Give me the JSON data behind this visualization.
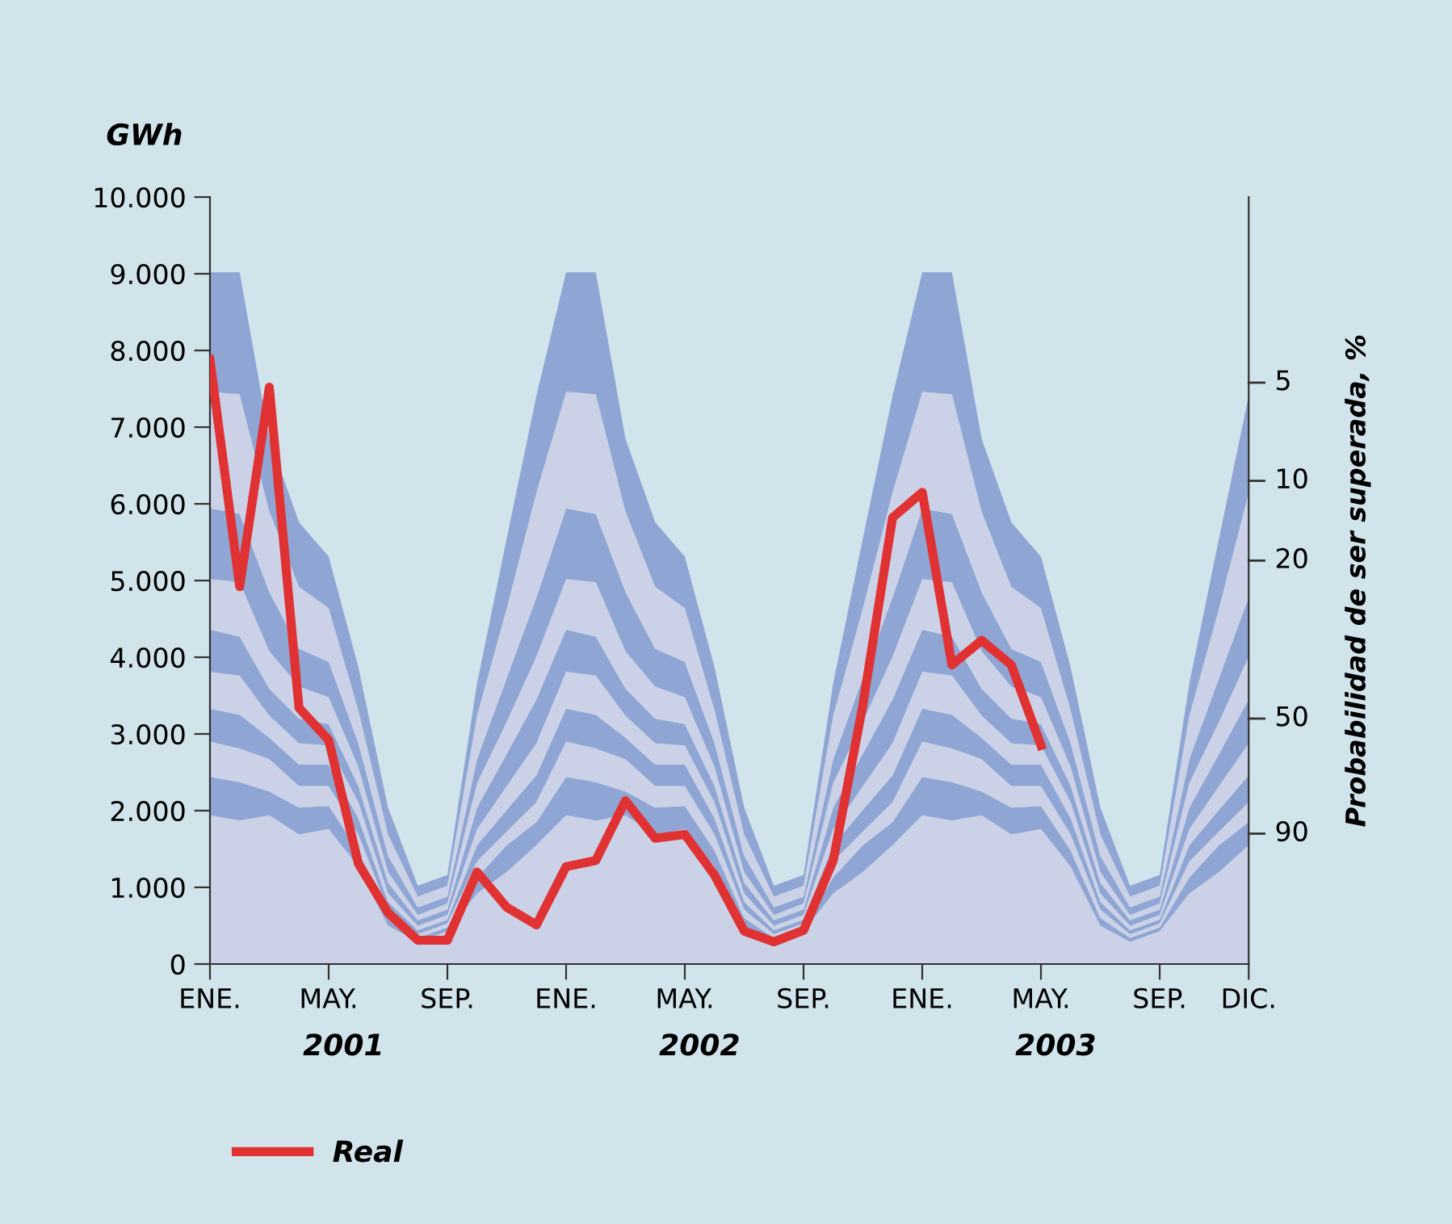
{
  "chart_data": {
    "type": "area",
    "stacked": true,
    "ylabel": "GWh",
    "y2label": "Probabilidad de ser superada, %",
    "categories": [
      "ENE.",
      null,
      null,
      null,
      "MAY.",
      null,
      null,
      null,
      "SEP.",
      null,
      null,
      null,
      "ENE.",
      null,
      null,
      null,
      "MAY.",
      null,
      null,
      null,
      "SEP.",
      null,
      null,
      null,
      "ENE.",
      null,
      null,
      null,
      "MAY.",
      null,
      null,
      null,
      "SEP.",
      null,
      null,
      "DIC."
    ],
    "ylim": [
      0,
      10000
    ],
    "yticks": [
      0,
      {
        "value": 1000,
        "label": "1.000"
      },
      {
        "value": 2000,
        "label": "2.000"
      },
      {
        "value": 3000,
        "label": "3.000"
      },
      {
        "value": 4000,
        "label": "4.000"
      },
      {
        "value": 5000,
        "label": "5.000"
      },
      {
        "value": 6000,
        "label": "6.000"
      },
      {
        "value": 7000,
        "label": "7.000"
      },
      {
        "value": 8000,
        "label": "8.000"
      },
      {
        "value": 9000,
        "label": "9.000"
      },
      {
        "value": 10000,
        "label": "10.000"
      }
    ],
    "annotations": [
      "2001",
      "2002",
      "2003",
      "5",
      "10",
      "20",
      "50",
      "90"
    ],
    "legend": "bottom left",
    "series": [
      {
        "color": "#cbd2e7",
        "values": [
          1940,
          1870,
          1940,
          1690,
          1760,
          1270,
          500,
          290,
          430,
          920,
          1200,
          1550,
          1940,
          1870,
          1940,
          1690,
          1760,
          1270,
          500,
          290,
          430,
          920,
          1200,
          1550,
          1940,
          1870,
          1940,
          1690,
          1760,
          1270,
          500,
          290,
          430,
          920,
          1200,
          1550
        ]
      },
      {
        "color": "#8fa5d3",
        "values": [
          500,
          500,
          310,
          350,
          300,
          210,
          100,
          50,
          50,
          210,
          350,
          300,
          500,
          500,
          310,
          350,
          300,
          210,
          100,
          50,
          50,
          210,
          350,
          300,
          500,
          500,
          310,
          350,
          300,
          210,
          100,
          50,
          50,
          210,
          350,
          300
        ]
      },
      {
        "color": "#cbd2e7",
        "values": [
          460,
          440,
          420,
          280,
          260,
          210,
          110,
          50,
          50,
          210,
          180,
          260,
          460,
          440,
          420,
          280,
          260,
          210,
          110,
          50,
          50,
          210,
          180,
          260,
          460,
          440,
          420,
          280,
          260,
          210,
          110,
          50,
          50,
          210,
          180,
          260
        ]
      },
      {
        "color": "#8fa5d3",
        "values": [
          430,
          440,
          280,
          280,
          280,
          210,
          100,
          50,
          50,
          210,
          280,
          350,
          430,
          440,
          280,
          280,
          280,
          210,
          100,
          50,
          50,
          210,
          280,
          350,
          430,
          440,
          280,
          280,
          280,
          210,
          100,
          50,
          50,
          210,
          280,
          350
        ]
      },
      {
        "color": "#cbd2e7",
        "values": [
          480,
          510,
          290,
          280,
          250,
          210,
          110,
          60,
          60,
          210,
          310,
          420,
          480,
          510,
          290,
          280,
          250,
          210,
          110,
          60,
          60,
          210,
          310,
          420,
          480,
          510,
          290,
          280,
          250,
          210,
          110,
          60,
          60,
          210,
          310,
          420
        ]
      },
      {
        "color": "#8fa5d3",
        "values": [
          550,
          510,
          350,
          320,
          280,
          210,
          140,
          70,
          70,
          280,
          420,
          570,
          550,
          510,
          350,
          320,
          280,
          210,
          140,
          70,
          70,
          280,
          420,
          570,
          550,
          510,
          350,
          320,
          280,
          210,
          140,
          70,
          70,
          280,
          420,
          570
        ]
      },
      {
        "color": "#cbd2e7",
        "values": [
          660,
          710,
          490,
          420,
          350,
          250,
          140,
          70,
          80,
          320,
          420,
          560,
          660,
          710,
          490,
          420,
          350,
          250,
          140,
          70,
          80,
          320,
          420,
          560,
          660,
          710,
          490,
          420,
          350,
          250,
          140,
          70,
          80,
          320,
          420,
          560
        ]
      },
      {
        "color": "#8fa5d3",
        "values": [
          920,
          890,
          770,
          490,
          460,
          310,
          210,
          100,
          90,
          310,
          570,
          770,
          920,
          890,
          770,
          490,
          460,
          310,
          210,
          100,
          90,
          310,
          570,
          770,
          920,
          890,
          770,
          490,
          460,
          310,
          210,
          100,
          90,
          310,
          570,
          770
        ]
      },
      {
        "color": "#cbd2e7",
        "values": [
          1520,
          1560,
          1050,
          810,
          700,
          430,
          280,
          140,
          140,
          570,
          910,
          1370,
          1520,
          1560,
          1050,
          810,
          700,
          430,
          280,
          140,
          140,
          570,
          910,
          1370,
          1520,
          1560,
          1050,
          810,
          700,
          430,
          280,
          140,
          140,
          570,
          910,
          1370
        ]
      },
      {
        "color": "#8fa5d3",
        "values": [
          1560,
          1590,
          950,
          840,
          670,
          560,
          350,
          140,
          140,
          420,
          910,
          1260,
          1560,
          1590,
          950,
          840,
          670,
          560,
          350,
          140,
          140,
          420,
          910,
          1260,
          1560,
          1590,
          950,
          840,
          670,
          560,
          350,
          140,
          140,
          420,
          910,
          1260
        ]
      },
      {
        "type": "line",
        "name": "Real",
        "color": "#e03232",
        "line_style": "solid",
        "values": [
          7880,
          4920,
          7520,
          3340,
          2920,
          1310,
          670,
          310,
          310,
          1200,
          740,
          510,
          1270,
          1350,
          2130,
          1640,
          1690,
          1160,
          430,
          290,
          440,
          1350,
          3380,
          5820,
          6150,
          3900,
          4220,
          3900,
          2850,
          null,
          null,
          null,
          null,
          null,
          null,
          null
        ]
      }
    ]
  }
}
